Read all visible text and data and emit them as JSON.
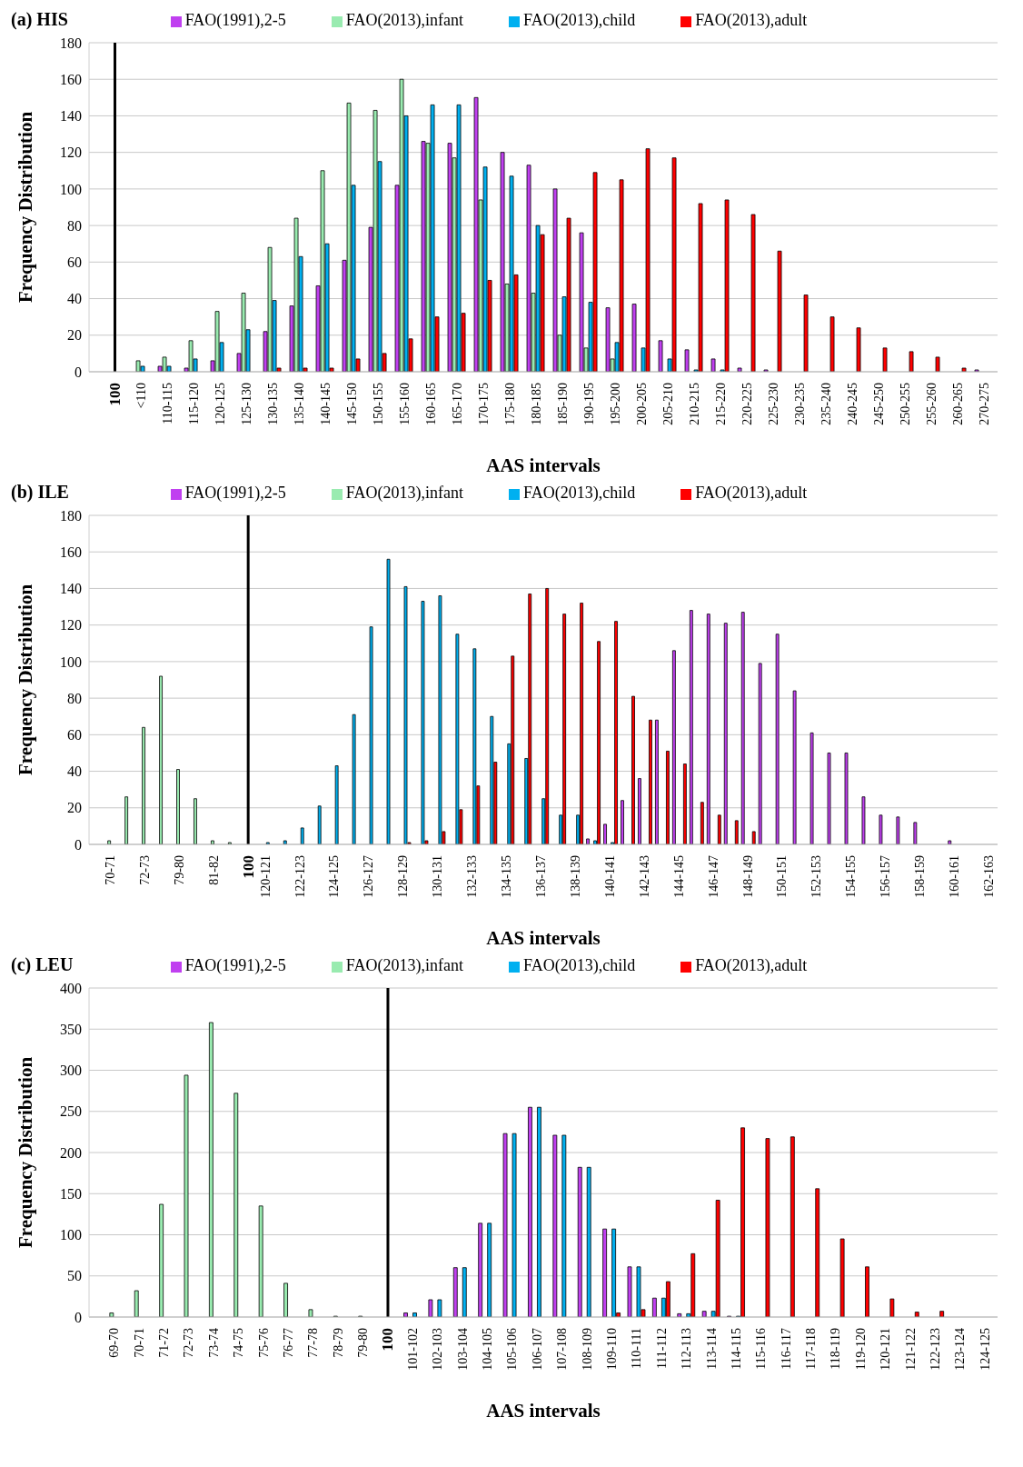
{
  "chart_data": [
    {
      "type": "bar",
      "title": "(a) HIS",
      "xlabel": "AAS intervals",
      "ylabel": "Frequency Distribution",
      "grid": "y",
      "legend": "top",
      "ylim": [
        0,
        180
      ],
      "yticks": [
        0,
        20,
        40,
        60,
        80,
        100,
        120,
        140,
        160,
        180
      ],
      "categories": [
        "100",
        "<110",
        "110-115",
        "115-120",
        "120-125",
        "125-130",
        "130-135",
        "135-140",
        "140-145",
        "145-150",
        "150-155",
        "155-160",
        "160-165",
        "165-170",
        "170-175",
        "175-180",
        "180-185",
        "185-190",
        "190-195",
        "195-200",
        "200-205",
        "205-210",
        "210-215",
        "215-220",
        "220-225",
        "225-230",
        "230-235",
        "235-240",
        "240-245",
        "245-250",
        "250-255",
        "255-260",
        "260-265",
        "270-275"
      ],
      "ref_lines": [
        {
          "axis": "x",
          "value": "100",
          "color": "#000000"
        }
      ],
      "series": [
        {
          "name": "FAO(1991),2-5",
          "color": "#c040f0",
          "values": [
            null,
            0,
            3,
            2,
            6,
            10,
            22,
            36,
            47,
            61,
            79,
            102,
            126,
            125,
            150,
            120,
            113,
            100,
            76,
            35,
            37,
            17,
            12,
            7,
            2,
            1,
            0,
            0,
            0,
            0,
            0,
            0,
            0,
            1
          ]
        },
        {
          "name": "FAO(2013),infant",
          "color": "#99ebb0",
          "values": [
            null,
            6,
            8,
            17,
            33,
            43,
            68,
            84,
            110,
            147,
            143,
            160,
            125,
            117,
            94,
            48,
            43,
            20,
            13,
            7,
            0,
            0,
            0,
            0,
            0,
            0,
            0,
            0,
            0,
            0,
            0,
            0,
            0,
            0
          ]
        },
        {
          "name": "FAO(2013),child",
          "color": "#00b0f0",
          "values": [
            null,
            3,
            3,
            7,
            16,
            23,
            39,
            63,
            70,
            102,
            115,
            140,
            146,
            146,
            112,
            107,
            80,
            41,
            38,
            16,
            13,
            7,
            1,
            1,
            0,
            0,
            0,
            0,
            0,
            0,
            0,
            0,
            0,
            0
          ]
        },
        {
          "name": "FAO(2013),adult",
          "color": "#ff0000",
          "values": [
            null,
            0,
            0,
            0,
            0,
            0,
            2,
            2,
            2,
            7,
            10,
            18,
            30,
            32,
            50,
            53,
            75,
            84,
            109,
            105,
            122,
            117,
            92,
            94,
            86,
            66,
            42,
            30,
            24,
            13,
            11,
            8,
            2,
            0
          ]
        }
      ]
    },
    {
      "type": "bar",
      "title": "(b) ILE",
      "xlabel": "AAS intervals",
      "ylabel": "Frequency Distribution",
      "grid": "y",
      "legend": "top",
      "ylim": [
        0,
        180
      ],
      "yticks": [
        0,
        20,
        40,
        60,
        80,
        100,
        120,
        140,
        160,
        180
      ],
      "categories": [
        "70-71",
        null,
        "72-73",
        null,
        "79-80",
        null,
        "81-82",
        null,
        "100",
        "120-121",
        null,
        "122-123",
        null,
        "124-125",
        null,
        "126-127",
        null,
        "128-129",
        null,
        "130-131",
        null,
        "132-133",
        null,
        "134-135",
        null,
        "136-137",
        null,
        "138-139",
        null,
        "140-141",
        null,
        "142-143",
        null,
        "144-145",
        null,
        "146-147",
        null,
        "148-149",
        null,
        "150-151",
        null,
        "152-153",
        null,
        "154-155",
        null,
        "156-157",
        null,
        "158-159",
        null,
        "160-161",
        null,
        "162-163"
      ],
      "ref_lines": [
        {
          "axis": "x",
          "value": "100",
          "color": "#000000"
        }
      ],
      "series": [
        {
          "name": "FAO(1991),2-5",
          "color": "#c040f0",
          "values": [
            0,
            0,
            0,
            0,
            0,
            0,
            0,
            0,
            null,
            0,
            0,
            0,
            0,
            0,
            0,
            0,
            0,
            0,
            0,
            0,
            0,
            0,
            0,
            0,
            0,
            0,
            0,
            0,
            3,
            11,
            24,
            36,
            68,
            106,
            128,
            126,
            121,
            127,
            99,
            115,
            84,
            61,
            50,
            50,
            26,
            16,
            15,
            12,
            0,
            2,
            0,
            0
          ]
        },
        {
          "name": "FAO(2013),infant",
          "color": "#99ebb0",
          "values": [
            2,
            26,
            64,
            92,
            41,
            25,
            2,
            1,
            null,
            0,
            0,
            0,
            0,
            0,
            0,
            0,
            0,
            0,
            0,
            0,
            0,
            0,
            0,
            0,
            0,
            0,
            0,
            0,
            0,
            0,
            0,
            0,
            0,
            0,
            0,
            0,
            0,
            0,
            0,
            0,
            0,
            0,
            0,
            0,
            0,
            0,
            0,
            0,
            0,
            0,
            0,
            0
          ]
        },
        {
          "name": "FAO(2013),child",
          "color": "#00b0f0",
          "values": [
            0,
            0,
            0,
            0,
            0,
            0,
            0,
            0,
            null,
            1,
            2,
            9,
            21,
            43,
            71,
            119,
            156,
            141,
            133,
            136,
            115,
            107,
            70,
            55,
            47,
            25,
            16,
            16,
            2,
            1,
            0,
            0,
            0,
            0,
            0,
            0,
            0,
            0,
            0,
            0,
            0,
            0,
            0,
            0,
            0,
            0,
            0,
            0,
            0,
            0,
            0,
            0
          ]
        },
        {
          "name": "FAO(2013),adult",
          "color": "#ff0000",
          "values": [
            0,
            0,
            0,
            0,
            0,
            0,
            0,
            0,
            null,
            0,
            0,
            0,
            0,
            0,
            0,
            0,
            0,
            1,
            2,
            7,
            19,
            32,
            45,
            103,
            137,
            140,
            126,
            132,
            111,
            122,
            81,
            68,
            51,
            44,
            23,
            16,
            13,
            7,
            0,
            0,
            0,
            0,
            0,
            0,
            0,
            0,
            0,
            0,
            0,
            0,
            0,
            0
          ]
        }
      ]
    },
    {
      "type": "bar",
      "title": "(c) LEU",
      "xlabel": "AAS intervals",
      "ylabel": "Frequency Distribution",
      "grid": "y",
      "legend": "top",
      "ylim": [
        0,
        400
      ],
      "yticks": [
        0,
        50,
        100,
        150,
        200,
        250,
        300,
        350,
        400
      ],
      "categories": [
        "69-70",
        "70-71",
        "71-72",
        "72-73",
        "73-74",
        "74-75",
        "75-76",
        "76-77",
        "77-78",
        "78-79",
        "79-80",
        "100",
        "101-102",
        "102-103",
        "103-104",
        "104-105",
        "105-106",
        "106-107",
        "107-108",
        "108-109",
        "109-110",
        "110-111",
        "111-112",
        "112-113",
        "113-114",
        "114-115",
        "115-116",
        "116-117",
        "117-118",
        "118-119",
        "119-120",
        "120-121",
        "121-122",
        "122-123",
        "123-124",
        "124-125"
      ],
      "ref_lines": [
        {
          "axis": "x",
          "value": "100",
          "color": "#000000"
        }
      ],
      "series": [
        {
          "name": "FAO(1991),2-5",
          "color": "#c040f0",
          "values": [
            0,
            0,
            0,
            0,
            0,
            0,
            0,
            0,
            0,
            0,
            0,
            null,
            5,
            21,
            60,
            114,
            223,
            255,
            221,
            182,
            107,
            61,
            23,
            4,
            7,
            1,
            0,
            0,
            0,
            0,
            0,
            0,
            0,
            0,
            0,
            0
          ]
        },
        {
          "name": "FAO(2013),infant",
          "color": "#99ebb0",
          "values": [
            5,
            32,
            137,
            294,
            358,
            272,
            135,
            41,
            9,
            1,
            1,
            null,
            0,
            0,
            0,
            0,
            0,
            0,
            0,
            0,
            0,
            0,
            0,
            0,
            0,
            0,
            0,
            0,
            0,
            0,
            0,
            0,
            0,
            0,
            0,
            0
          ]
        },
        {
          "name": "FAO(2013),child",
          "color": "#00b0f0",
          "values": [
            0,
            0,
            0,
            0,
            0,
            0,
            0,
            0,
            0,
            0,
            0,
            null,
            5,
            21,
            60,
            114,
            223,
            255,
            221,
            182,
            107,
            61,
            23,
            4,
            7,
            1,
            0,
            0,
            0,
            0,
            0,
            0,
            0,
            0,
            0,
            0
          ]
        },
        {
          "name": "FAO(2013),adult",
          "color": "#ff0000",
          "values": [
            0,
            0,
            0,
            0,
            0,
            0,
            0,
            0,
            0,
            0,
            0,
            null,
            0,
            0,
            0,
            0,
            0,
            0,
            0,
            0,
            5,
            9,
            43,
            77,
            142,
            230,
            217,
            219,
            156,
            95,
            61,
            22,
            6,
            7,
            0,
            0
          ]
        }
      ]
    }
  ]
}
